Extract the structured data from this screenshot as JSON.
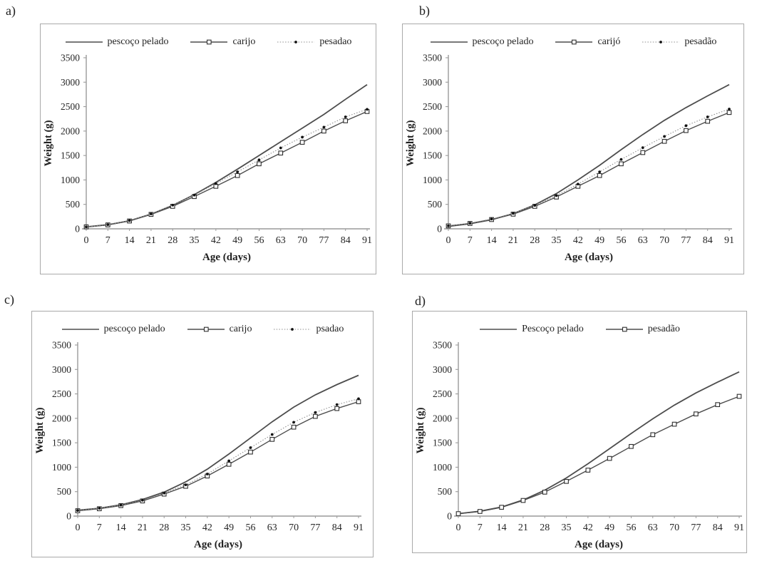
{
  "figure": {
    "description": "Four-panel growth curve figure, weight by age for chicken strains"
  },
  "colors": {
    "solid_line": "#4d4d4d",
    "marker_line": "#4d4d4d",
    "dotted_line": "#8f8f8f",
    "marker_square_fill": "#ffffff",
    "marker_square_stroke": "#2e2e2e",
    "marker_dot_fill": "#111111",
    "axis": "#9a9a9a",
    "tick_text": "#262626",
    "panel_border": "#a9a9a9"
  },
  "chart_data": [
    {
      "panel_label": "a)",
      "type": "line",
      "title": "",
      "xlabel": "Age (days)",
      "ylabel": "Weight (g)",
      "x": [
        0,
        7,
        14,
        21,
        28,
        35,
        42,
        49,
        56,
        63,
        70,
        77,
        84,
        91
      ],
      "x_ticks": [
        0,
        7,
        14,
        21,
        28,
        35,
        42,
        49,
        56,
        63,
        70,
        77,
        84,
        91
      ],
      "y_ticks": [
        0,
        500,
        1000,
        1500,
        2000,
        2500,
        3000,
        3500
      ],
      "xlim": [
        0,
        91
      ],
      "ylim": [
        0,
        3500
      ],
      "grid": false,
      "legend_position": "top",
      "series": [
        {
          "name": "pescoço pelado",
          "line": "solid",
          "marker": "none",
          "values": [
            40,
            85,
            165,
            300,
            480,
            700,
            950,
            1220,
            1500,
            1780,
            2060,
            2340,
            2650,
            2950
          ]
        },
        {
          "name": "carijo",
          "line": "solid",
          "marker": "square",
          "values": [
            40,
            80,
            160,
            295,
            460,
            660,
            870,
            1090,
            1330,
            1550,
            1770,
            2000,
            2210,
            2400
          ]
        },
        {
          "name": "pesadao",
          "line": "dotted",
          "marker": "dot",
          "values": [
            40,
            85,
            170,
            305,
            485,
            690,
            925,
            1165,
            1410,
            1655,
            1875,
            2080,
            2290,
            2445
          ]
        }
      ]
    },
    {
      "panel_label": "b)",
      "type": "line",
      "title": "",
      "xlabel": "Age (days)",
      "ylabel": "Weight (g)",
      "x": [
        0,
        7,
        14,
        21,
        28,
        35,
        42,
        49,
        56,
        63,
        70,
        77,
        84,
        91
      ],
      "x_ticks": [
        0,
        7,
        14,
        21,
        28,
        35,
        42,
        49,
        56,
        63,
        70,
        77,
        84,
        91
      ],
      "y_ticks": [
        0,
        500,
        1000,
        1500,
        2000,
        2500,
        3000,
        3500
      ],
      "xlim": [
        0,
        91
      ],
      "ylim": [
        0,
        3500
      ],
      "grid": false,
      "legend_position": "top",
      "series": [
        {
          "name": "pescoço pelado",
          "line": "solid",
          "marker": "none",
          "values": [
            50,
            105,
            185,
            310,
            490,
            720,
            1000,
            1300,
            1620,
            1930,
            2220,
            2480,
            2720,
            2950
          ]
        },
        {
          "name": "carijó",
          "line": "solid",
          "marker": "square",
          "values": [
            60,
            110,
            190,
            300,
            460,
            650,
            870,
            1090,
            1330,
            1560,
            1790,
            2010,
            2200,
            2380
          ]
        },
        {
          "name": "pesadão",
          "line": "dotted",
          "marker": "dot",
          "values": [
            60,
            115,
            200,
            315,
            480,
            680,
            915,
            1165,
            1420,
            1660,
            1890,
            2110,
            2290,
            2450
          ]
        }
      ]
    },
    {
      "panel_label": "c)",
      "type": "line",
      "title": "",
      "xlabel": "Age (days)",
      "ylabel": "Weight (g)",
      "x": [
        0,
        7,
        14,
        21,
        28,
        35,
        42,
        49,
        56,
        63,
        70,
        77,
        84,
        91
      ],
      "x_ticks": [
        0,
        7,
        14,
        21,
        28,
        35,
        42,
        49,
        56,
        63,
        70,
        77,
        84,
        91
      ],
      "y_ticks": [
        0,
        500,
        1000,
        1500,
        2000,
        2500,
        3000,
        3500
      ],
      "xlim": [
        0,
        91
      ],
      "ylim": [
        0,
        3500
      ],
      "grid": false,
      "legend_position": "top",
      "series": [
        {
          "name": "pescoço pelado",
          "line": "solid",
          "marker": "none",
          "values": [
            120,
            160,
            230,
            340,
            490,
            700,
            960,
            1270,
            1600,
            1930,
            2230,
            2480,
            2690,
            2880
          ]
        },
        {
          "name": "carijo",
          "line": "solid",
          "marker": "square",
          "values": [
            110,
            150,
            215,
            310,
            450,
            610,
            820,
            1060,
            1310,
            1570,
            1820,
            2040,
            2200,
            2340
          ]
        },
        {
          "name": "psadao",
          "line": "dotted",
          "marker": "dot",
          "values": [
            115,
            160,
            225,
            325,
            470,
            640,
            860,
            1130,
            1400,
            1670,
            1920,
            2120,
            2280,
            2400
          ]
        }
      ]
    },
    {
      "panel_label": "d)",
      "type": "line",
      "title": "",
      "xlabel": "Age (days)",
      "ylabel": "Weight (g)",
      "x": [
        0,
        7,
        14,
        21,
        28,
        35,
        42,
        49,
        56,
        63,
        70,
        77,
        84,
        91
      ],
      "x_ticks": [
        0,
        7,
        14,
        21,
        28,
        35,
        42,
        49,
        56,
        63,
        70,
        77,
        84,
        91
      ],
      "y_ticks": [
        0,
        500,
        1000,
        1500,
        2000,
        2500,
        3000,
        3500
      ],
      "xlim": [
        0,
        91
      ],
      "ylim": [
        0,
        3500
      ],
      "grid": false,
      "legend_position": "top",
      "series": [
        {
          "name": "Pescoço pelado",
          "line": "solid",
          "marker": "none",
          "values": [
            50,
            100,
            185,
            330,
            530,
            780,
            1070,
            1380,
            1690,
            1990,
            2270,
            2520,
            2740,
            2950
          ]
        },
        {
          "name": "pesadão",
          "line": "solid",
          "marker": "square",
          "values": [
            50,
            95,
            180,
            320,
            490,
            710,
            940,
            1180,
            1425,
            1665,
            1880,
            2090,
            2280,
            2450
          ]
        }
      ]
    }
  ]
}
